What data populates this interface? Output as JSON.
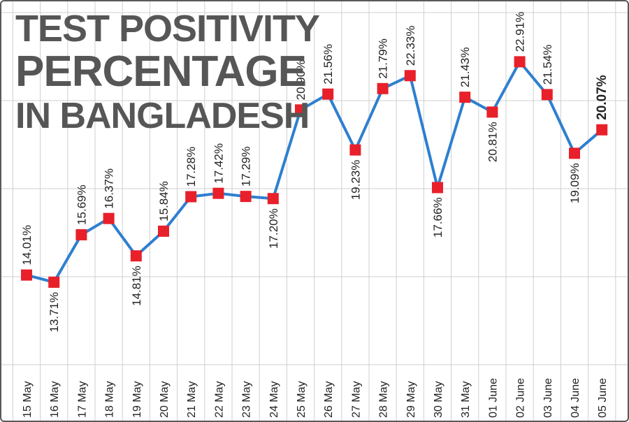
{
  "chart_data": {
    "type": "line",
    "title_lines": [
      "TEST POSITIVITY",
      "PERCENTAGE",
      "IN BANGLADESH"
    ],
    "xlabel": "",
    "ylabel": "",
    "categories": [
      "15 May",
      "16 May",
      "17 May",
      "18 May",
      "19 May",
      "20 May",
      "21 May",
      "22 May",
      "23 May",
      "24 May",
      "25 May",
      "26 May",
      "27 May",
      "28 May",
      "29 May",
      "30 May",
      "31 May",
      "01 June",
      "02 June",
      "03 June",
      "04 June",
      "05 June"
    ],
    "values": [
      14.01,
      13.71,
      15.69,
      16.37,
      14.81,
      15.84,
      17.28,
      17.42,
      17.29,
      17.2,
      20.9,
      21.56,
      19.23,
      21.79,
      22.33,
      17.66,
      21.43,
      20.81,
      22.91,
      21.54,
      19.09,
      20.07
    ],
    "data_labels": [
      "14.01%",
      "13.71%",
      "15.69%",
      "16.37%",
      "14.81%",
      "15.84%",
      "17.28%",
      "17.42%",
      "17.29%",
      "17.20%",
      "20.90%",
      "21.56%",
      "19.23%",
      "21.79%",
      "22.33%",
      "17.66%",
      "21.43%",
      "20.81%",
      "22.91%",
      "21.54%",
      "19.09%",
      "20.07%"
    ],
    "label_side": [
      "above",
      "below",
      "above",
      "above",
      "below",
      "above",
      "above",
      "above",
      "above",
      "below",
      "above",
      "above",
      "below",
      "above",
      "above",
      "below",
      "above",
      "below",
      "above",
      "above",
      "below",
      "above"
    ],
    "highlight_last": true,
    "grid": true,
    "line_color": "#2e7fcf",
    "marker_color": "#e8202a",
    "grid_color": "#cfcfcf",
    "title_color": "#565656"
  }
}
